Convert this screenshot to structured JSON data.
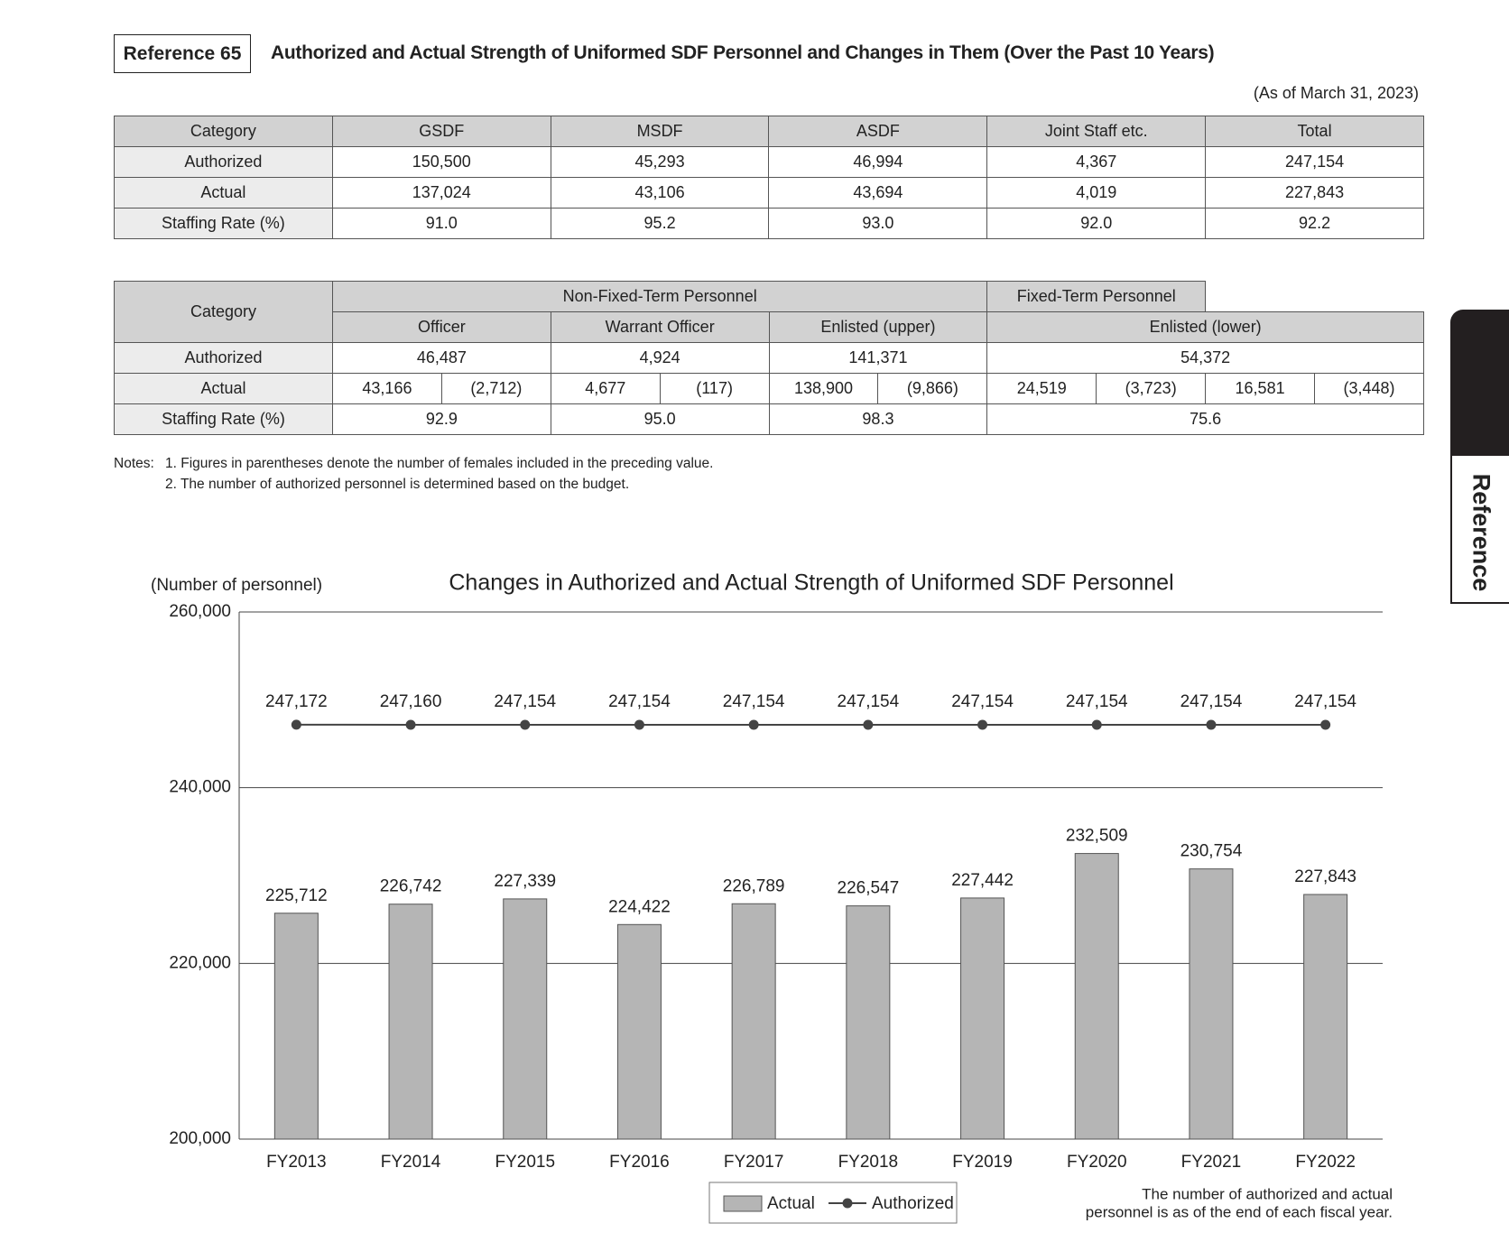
{
  "header": {
    "reference": "Reference 65",
    "title": "Authorized and Actual Strength of Uniformed SDF Personnel and Changes in Them (Over the Past 10 Years)",
    "as_of": "(As of March 31, 2023)"
  },
  "table1": {
    "header": [
      "Category",
      "GSDF",
      "MSDF",
      "ASDF",
      "Joint Staff etc.",
      "Total"
    ],
    "rows": [
      [
        "Authorized",
        "150,500",
        "45,293",
        "46,994",
        "4,367",
        "247,154"
      ],
      [
        "Actual",
        "137,024",
        "43,106",
        "43,694",
        "4,019",
        "227,843"
      ],
      [
        "Staffing Rate (%)",
        "91.0",
        "95.2",
        "93.0",
        "92.0",
        "92.2"
      ]
    ]
  },
  "table2": {
    "category": "Category",
    "group1": "Non-Fixed-Term Personnel",
    "group2": "Fixed-Term Personnel",
    "subheaders": [
      "Officer",
      "Warrant Officer",
      "Enlisted (upper)",
      "Enlisted (lower)"
    ],
    "authorized": {
      "label": "Authorized",
      "values": [
        "46,487",
        "4,924",
        "141,371",
        "54,372"
      ]
    },
    "actual": {
      "label": "Actual",
      "values": [
        "43,166",
        "(2,712)",
        "4,677",
        "(117)",
        "138,900",
        "(9,866)",
        "24,519",
        "(3,723)",
        "16,581",
        "(3,448)"
      ]
    },
    "staffing": {
      "label": "Staffing Rate (%)",
      "values": [
        "92.9",
        "95.0",
        "98.3",
        "75.6"
      ]
    }
  },
  "notes": {
    "label": "Notes:",
    "items": [
      "1.  Figures in parentheses denote the number of females included in the preceding value.",
      "2.  The number of authorized personnel is determined based on the budget."
    ]
  },
  "side_tab": "Reference",
  "chart_data": {
    "type": "bar",
    "title": "Changes in Authorized and Actual Strength of Uniformed SDF Personnel",
    "y_label": "(Number of personnel)",
    "categories": [
      "FY2013",
      "FY2014",
      "FY2015",
      "FY2016",
      "FY2017",
      "FY2018",
      "FY2019",
      "FY2020",
      "FY2021",
      "FY2022"
    ],
    "series": [
      {
        "name": "Actual",
        "type": "bar",
        "color": "#b5b5b5",
        "values": [
          225712,
          226742,
          227339,
          224422,
          226789,
          226547,
          227442,
          232509,
          230754,
          227843
        ],
        "value_labels": [
          "225,712",
          "226,742",
          "227,339",
          "224,422",
          "226,789",
          "226,547",
          "227,442",
          "232,509",
          "230,754",
          "227,843"
        ]
      },
      {
        "name": "Authorized",
        "type": "line",
        "color": "#444444",
        "values": [
          247172,
          247160,
          247154,
          247154,
          247154,
          247154,
          247154,
          247154,
          247154,
          247154
        ],
        "value_labels": [
          "247,172",
          "247,160",
          "247,154",
          "247,154",
          "247,154",
          "247,154",
          "247,154",
          "247,154",
          "247,154",
          "247,154"
        ]
      }
    ],
    "ylim": [
      200000,
      260000
    ],
    "yticks": [
      {
        "value": 200000,
        "label": "200,000"
      },
      {
        "value": 220000,
        "label": "220,000"
      },
      {
        "value": 240000,
        "label": "240,000"
      },
      {
        "value": 260000,
        "label": "260,000"
      }
    ],
    "grid": true,
    "note": [
      "The number of authorized and actual",
      "personnel is as of the end of each fiscal year."
    ]
  }
}
